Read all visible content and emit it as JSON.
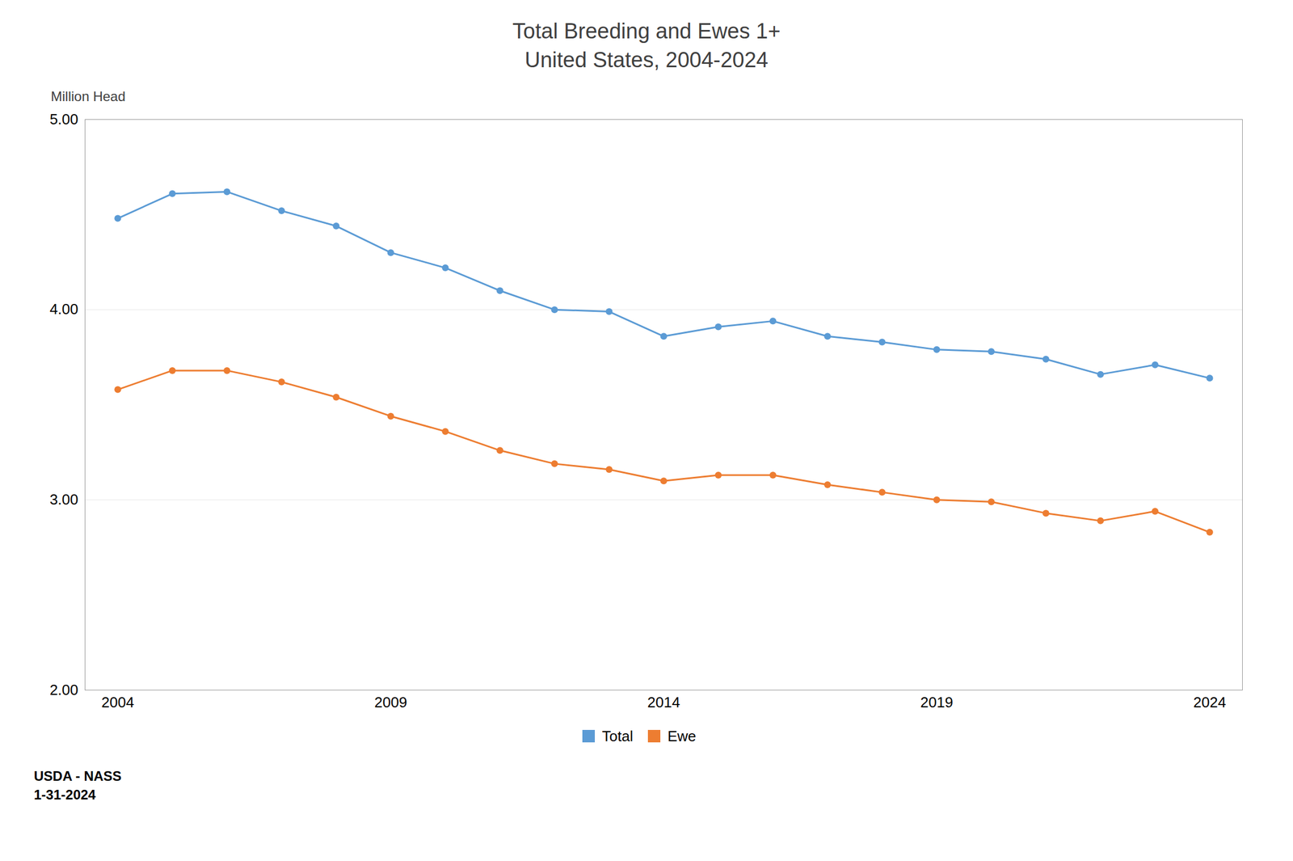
{
  "chart_data": {
    "type": "line",
    "title": "Total Breeding and Ewes 1+",
    "subtitle": "United States, 2004-2024",
    "y_label": "Million Head",
    "x": [
      2004,
      2005,
      2006,
      2007,
      2008,
      2009,
      2010,
      2011,
      2012,
      2013,
      2014,
      2015,
      2016,
      2017,
      2018,
      2019,
      2020,
      2021,
      2022,
      2023,
      2024
    ],
    "series": [
      {
        "name": "Total",
        "color": "#5B9BD5",
        "values": [
          4.48,
          4.61,
          4.62,
          4.52,
          4.44,
          4.3,
          4.22,
          4.1,
          4.0,
          3.99,
          3.86,
          3.91,
          3.94,
          3.86,
          3.83,
          3.79,
          3.78,
          3.74,
          3.66,
          3.71,
          3.64
        ]
      },
      {
        "name": "Ewe",
        "color": "#ED7D31",
        "values": [
          3.58,
          3.68,
          3.68,
          3.62,
          3.54,
          3.44,
          3.36,
          3.26,
          3.19,
          3.16,
          3.1,
          3.13,
          3.13,
          3.08,
          3.04,
          3.0,
          2.99,
          2.93,
          2.89,
          2.94,
          2.83
        ]
      }
    ],
    "xlim": [
      2003.4,
      2024.6
    ],
    "xticks": [
      2004,
      2009,
      2014,
      2019,
      2024
    ],
    "ylim": [
      2.0,
      5.0
    ],
    "yticks": [
      {
        "value": 2.0,
        "label": "2.00"
      },
      {
        "value": 3.0,
        "label": "3.00"
      },
      {
        "value": 4.0,
        "label": "4.00"
      },
      {
        "value": 5.0,
        "label": "5.00"
      }
    ],
    "grid": true,
    "legend": "bottom",
    "marker": "circle",
    "annotations": [
      "USDA - NASS",
      "1-31-2024"
    ]
  }
}
